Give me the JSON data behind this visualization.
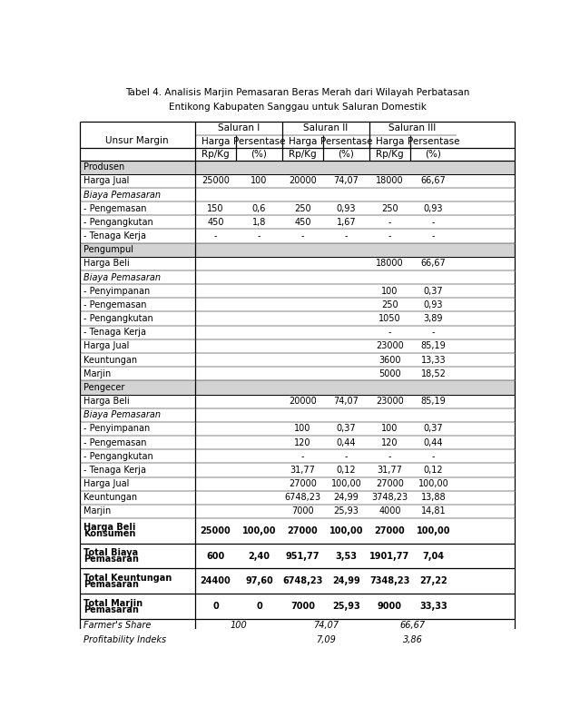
{
  "title_line1": "Tabel 4. Analisis Marjin Pemasaran Beras Merah dari Wilayah Perbatasan",
  "title_line2": "Entikong Kabupaten Sanggau untuk Saluran Domestik",
  "bg_section": "#d3d3d3",
  "bg_white": "#ffffff",
  "rows": [
    {
      "label": "Produsen",
      "italic_label": false,
      "bold_label": false,
      "section": true,
      "vals": [
        "",
        "",
        "",
        "",
        "",
        ""
      ],
      "multiline": false,
      "farmers_share": false,
      "profitability": false
    },
    {
      "label": "Harga Jual",
      "italic_label": false,
      "bold_label": false,
      "section": false,
      "vals": [
        "25000",
        "100",
        "20000",
        "74,07",
        "18000",
        "66,67"
      ],
      "multiline": false,
      "farmers_share": false,
      "profitability": false
    },
    {
      "label": "Biaya Pemasaran",
      "italic_label": true,
      "bold_label": false,
      "section": false,
      "vals": [
        "",
        "",
        "",
        "",
        "",
        ""
      ],
      "multiline": false,
      "farmers_share": false,
      "profitability": false
    },
    {
      "label": "- Pengemasan",
      "italic_label": false,
      "bold_label": false,
      "section": false,
      "vals": [
        "150",
        "0,6",
        "250",
        "0,93",
        "250",
        "0,93"
      ],
      "multiline": false,
      "farmers_share": false,
      "profitability": false
    },
    {
      "label": "- Pengangkutan",
      "italic_label": false,
      "bold_label": false,
      "section": false,
      "vals": [
        "450",
        "1,8",
        "450",
        "1,67",
        "-",
        "-"
      ],
      "multiline": false,
      "farmers_share": false,
      "profitability": false
    },
    {
      "label": "- Tenaga Kerja",
      "italic_label": false,
      "bold_label": false,
      "section": false,
      "vals": [
        "-",
        "-",
        "-",
        "-",
        "-",
        "-"
      ],
      "multiline": false,
      "farmers_share": false,
      "profitability": false
    },
    {
      "label": "Pengumpul",
      "italic_label": false,
      "bold_label": false,
      "section": true,
      "vals": [
        "",
        "",
        "",
        "",
        "",
        ""
      ],
      "multiline": false,
      "farmers_share": false,
      "profitability": false
    },
    {
      "label": "Harga Beli",
      "italic_label": false,
      "bold_label": false,
      "section": false,
      "vals": [
        "",
        "",
        "",
        "",
        "18000",
        "66,67"
      ],
      "multiline": false,
      "farmers_share": false,
      "profitability": false
    },
    {
      "label": "Biaya Pemasaran",
      "italic_label": true,
      "bold_label": false,
      "section": false,
      "vals": [
        "",
        "",
        "",
        "",
        "",
        ""
      ],
      "multiline": false,
      "farmers_share": false,
      "profitability": false
    },
    {
      "label": "- Penyimpanan",
      "italic_label": false,
      "bold_label": false,
      "section": false,
      "vals": [
        "",
        "",
        "",
        "",
        "100",
        "0,37"
      ],
      "multiline": false,
      "farmers_share": false,
      "profitability": false
    },
    {
      "label": "- Pengemasan",
      "italic_label": false,
      "bold_label": false,
      "section": false,
      "vals": [
        "",
        "",
        "",
        "",
        "250",
        "0,93"
      ],
      "multiline": false,
      "farmers_share": false,
      "profitability": false
    },
    {
      "label": "- Pengangkutan",
      "italic_label": false,
      "bold_label": false,
      "section": false,
      "vals": [
        "",
        "",
        "",
        "",
        "1050",
        "3,89"
      ],
      "multiline": false,
      "farmers_share": false,
      "profitability": false
    },
    {
      "label": "- Tenaga Kerja",
      "italic_label": false,
      "bold_label": false,
      "section": false,
      "vals": [
        "",
        "",
        "",
        "",
        "-",
        "-"
      ],
      "multiline": false,
      "farmers_share": false,
      "profitability": false
    },
    {
      "label": "Harga Jual",
      "italic_label": false,
      "bold_label": false,
      "section": false,
      "vals": [
        "",
        "",
        "",
        "",
        "23000",
        "85,19"
      ],
      "multiline": false,
      "farmers_share": false,
      "profitability": false
    },
    {
      "label": "Keuntungan",
      "italic_label": false,
      "bold_label": false,
      "section": false,
      "vals": [
        "",
        "",
        "",
        "",
        "3600",
        "13,33"
      ],
      "multiline": false,
      "farmers_share": false,
      "profitability": false
    },
    {
      "label": "Marjin",
      "italic_label": false,
      "bold_label": false,
      "section": false,
      "vals": [
        "",
        "",
        "",
        "",
        "5000",
        "18,52"
      ],
      "multiline": false,
      "farmers_share": false,
      "profitability": false
    },
    {
      "label": "Pengecer",
      "italic_label": false,
      "bold_label": false,
      "section": true,
      "vals": [
        "",
        "",
        "",
        "",
        "",
        ""
      ],
      "multiline": false,
      "farmers_share": false,
      "profitability": false
    },
    {
      "label": "Harga Beli",
      "italic_label": false,
      "bold_label": false,
      "section": false,
      "vals": [
        "",
        "",
        "20000",
        "74,07",
        "23000",
        "85,19"
      ],
      "multiline": false,
      "farmers_share": false,
      "profitability": false
    },
    {
      "label": "Biaya Pemasaran",
      "italic_label": true,
      "bold_label": false,
      "section": false,
      "vals": [
        "",
        "",
        "",
        "",
        "",
        ""
      ],
      "multiline": false,
      "farmers_share": false,
      "profitability": false
    },
    {
      "label": "- Penyimpanan",
      "italic_label": false,
      "bold_label": false,
      "section": false,
      "vals": [
        "",
        "",
        "100",
        "0,37",
        "100",
        "0,37"
      ],
      "multiline": false,
      "farmers_share": false,
      "profitability": false
    },
    {
      "label": "- Pengemasan",
      "italic_label": false,
      "bold_label": false,
      "section": false,
      "vals": [
        "",
        "",
        "120",
        "0,44",
        "120",
        "0,44"
      ],
      "multiline": false,
      "farmers_share": false,
      "profitability": false
    },
    {
      "label": "- Pengangkutan",
      "italic_label": false,
      "bold_label": false,
      "section": false,
      "vals": [
        "",
        "",
        "-",
        "-",
        "-",
        "-"
      ],
      "multiline": false,
      "farmers_share": false,
      "profitability": false
    },
    {
      "label": "- Tenaga Kerja",
      "italic_label": false,
      "bold_label": false,
      "section": false,
      "vals": [
        "",
        "",
        "31,77",
        "0,12",
        "31,77",
        "0,12"
      ],
      "multiline": false,
      "farmers_share": false,
      "profitability": false
    },
    {
      "label": "Harga Jual",
      "italic_label": false,
      "bold_label": false,
      "section": false,
      "vals": [
        "",
        "",
        "27000",
        "100,00",
        "27000",
        "100,00"
      ],
      "multiline": false,
      "farmers_share": false,
      "profitability": false
    },
    {
      "label": "Keuntungan",
      "italic_label": false,
      "bold_label": false,
      "section": false,
      "vals": [
        "",
        "",
        "6748,23",
        "24,99",
        "3748,23",
        "13,88"
      ],
      "multiline": false,
      "farmers_share": false,
      "profitability": false
    },
    {
      "label": "Marjin",
      "italic_label": false,
      "bold_label": false,
      "section": false,
      "vals": [
        "",
        "",
        "7000",
        "25,93",
        "4000",
        "14,81"
      ],
      "multiline": false,
      "farmers_share": false,
      "profitability": false
    },
    {
      "label": "Harga Beli\nKonsumen",
      "italic_label": false,
      "bold_label": true,
      "section": false,
      "vals": [
        "25000",
        "100,00",
        "27000",
        "100,00",
        "27000",
        "100,00"
      ],
      "multiline": true,
      "farmers_share": false,
      "profitability": false
    },
    {
      "label": "Total Biaya\nPemasaran",
      "italic_label": false,
      "bold_label": true,
      "section": false,
      "vals": [
        "600",
        "2,40",
        "951,77",
        "3,53",
        "1901,77",
        "7,04"
      ],
      "multiline": true,
      "farmers_share": false,
      "profitability": false
    },
    {
      "label": "Total Keuntungan\nPemasaran",
      "italic_label": false,
      "bold_label": true,
      "section": false,
      "vals": [
        "24400",
        "97,60",
        "6748,23",
        "24,99",
        "7348,23",
        "27,22"
      ],
      "multiline": true,
      "farmers_share": false,
      "profitability": false
    },
    {
      "label": "Total Marjin\nPemasaran",
      "italic_label": false,
      "bold_label": true,
      "section": false,
      "vals": [
        "0",
        "0",
        "7000",
        "25,93",
        "9000",
        "33,33"
      ],
      "multiline": true,
      "farmers_share": false,
      "profitability": false
    },
    {
      "label": "Farmer's Share",
      "italic_label": true,
      "bold_label": false,
      "section": false,
      "vals": [
        "",
        "100",
        "",
        "74,07",
        "",
        "66,67"
      ],
      "multiline": false,
      "farmers_share": true,
      "profitability": false
    },
    {
      "label": "Profitability Indeks",
      "italic_label": true,
      "bold_label": false,
      "section": false,
      "vals": [
        "",
        "",
        "",
        "7,09",
        "",
        "3,86"
      ],
      "multiline": false,
      "farmers_share": false,
      "profitability": true
    }
  ]
}
